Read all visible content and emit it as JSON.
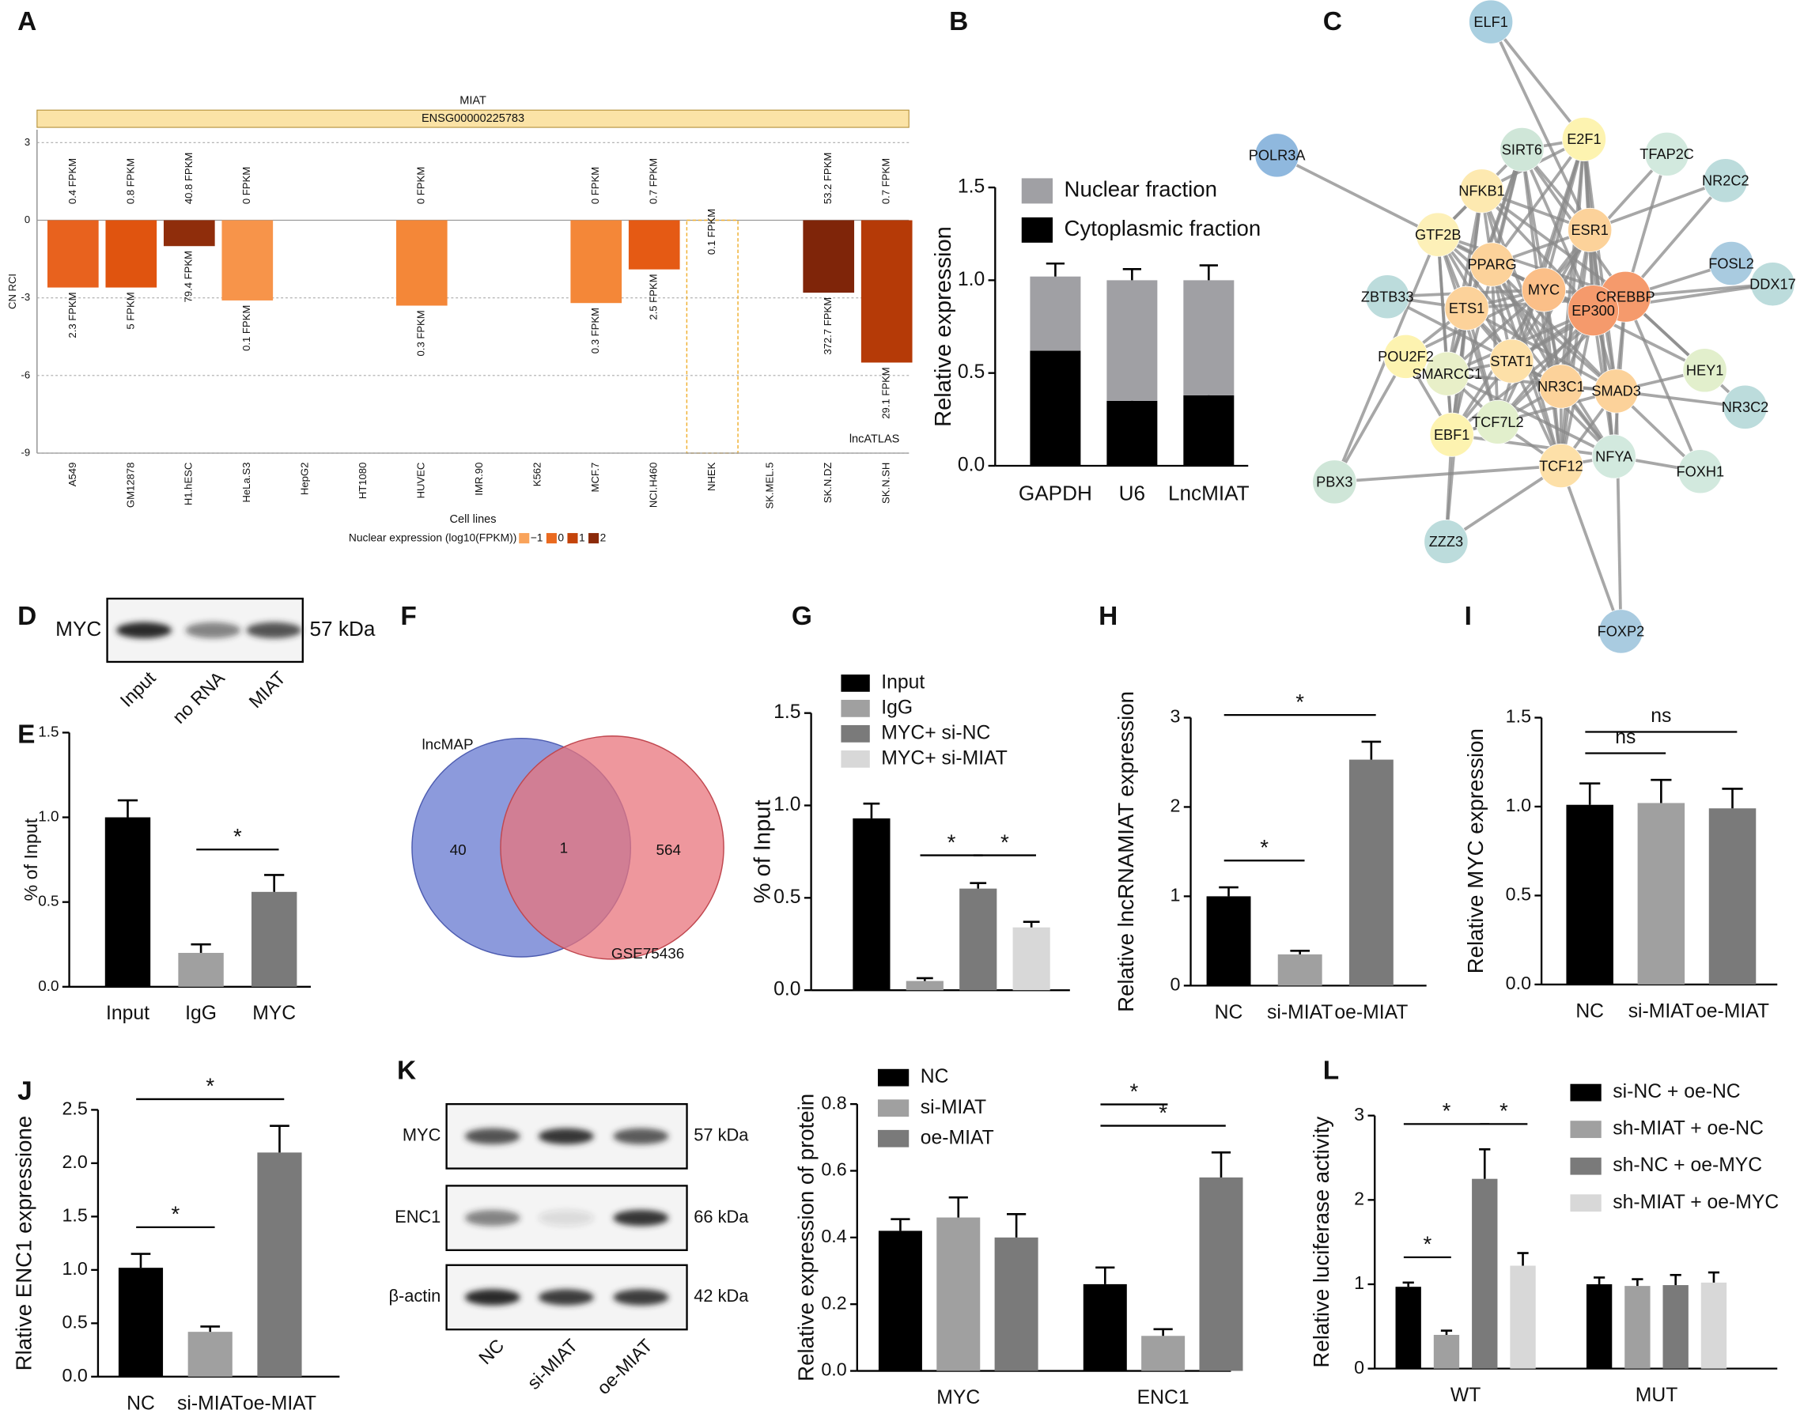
{
  "panels": [
    "A",
    "B",
    "C",
    "D",
    "E",
    "F",
    "G",
    "H",
    "I",
    "J",
    "K",
    "L"
  ],
  "chart_data": [
    {
      "type": "diverging_bar",
      "title": "MIAT",
      "gene": "ENSG00000225783",
      "ylabel": "CN RCI",
      "xlabel": "Cell lines",
      "source": "lncATLAS",
      "categories": [
        "A549",
        "GM12878",
        "H1.hESC",
        "HeLa.S3",
        "HepG2",
        "HT1080",
        "HUVEC",
        "IMR.90",
        "K562",
        "MCF.7",
        "NCI.H460",
        "NHEK",
        "SK.MEL.5",
        "SK.N.DZ",
        "SK.N.SH"
      ],
      "values": [
        -2.6,
        -2.6,
        -1.0,
        -3.1,
        null,
        null,
        -3.3,
        null,
        null,
        -3.2,
        -1.9,
        null,
        null,
        -2.8,
        -5.5
      ],
      "colors": [
        "#e8621e",
        "#e0540f",
        "#8f2d0b",
        "#f7944a",
        null,
        null,
        "#f48738",
        null,
        null,
        "#f48738",
        "#e55a14",
        null,
        null,
        "#7f2509",
        "#b53a07"
      ],
      "nuclear_labels": [
        "0.4 FPKM",
        "0.8 FPKM",
        "40.8 FPKM",
        "0 FPKM",
        null,
        null,
        "0 FPKM",
        null,
        null,
        "0 FPKM",
        "0.7 FPKM",
        "0.1 FPKM",
        null,
        "53.2 FPKM",
        "0.7 FPKM"
      ],
      "cytoplasmic_labels": [
        "2.3 FPKM",
        "5 FPKM",
        "79.4 FPKM",
        "0.1 FPKM",
        null,
        null,
        "0.3 FPKM",
        null,
        null,
        "0.3 FPKM",
        "2.5 FPKM",
        null,
        null,
        "372.7 FPKM",
        "29.1 FPKM"
      ],
      "highlight": "NHEK",
      "highlight_color": "#f0b030",
      "legend_title": "Nuclear expression (log10(FPKM))",
      "legend": [
        {
          "label": "−1",
          "color": "#f9a35a"
        },
        {
          "label": "0",
          "color": "#ea6a1f"
        },
        {
          "label": "1",
          "color": "#c4440b"
        },
        {
          "label": "2",
          "color": "#8b2a0a"
        }
      ],
      "ylim": [
        -9,
        3.5
      ],
      "yticks": [
        -9,
        -6,
        -3,
        0,
        3
      ],
      "grid": true
    },
    {
      "type": "stacked_bar",
      "ylabel": "Relative expression",
      "categories": [
        "GAPDH",
        "U6",
        "LncMIAT"
      ],
      "series": [
        {
          "name": "Nuclear fraction",
          "color": "#a0a0a4",
          "values": [
            0.4,
            0.65,
            0.62
          ],
          "errors": [
            0.07,
            0.06,
            0.08
          ]
        },
        {
          "name": "Cytoplasmic fraction",
          "color": "#000000",
          "values": [
            0.62,
            0.35,
            0.38
          ],
          "errors": [
            0.05,
            0.03,
            0.04
          ]
        }
      ],
      "ylim": [
        0,
        1.5
      ],
      "yticks": [
        {
          "value": 0,
          "label": "0.0"
        },
        {
          "value": 0.5,
          "label": "0.5"
        },
        {
          "value": 1,
          "label": "1.0"
        },
        {
          "value": 1.5,
          "label": "1.5"
        }
      ]
    },
    {
      "type": "bar",
      "ylabel": "% of Input",
      "categories": [
        "Input",
        "IgG",
        "MYC"
      ],
      "values": [
        1.0,
        0.2,
        0.56
      ],
      "errors": [
        0.1,
        0.05,
        0.1
      ],
      "colors": [
        "#000000",
        "#a0a0a0",
        "#7a7a7a"
      ],
      "annotations": [
        {
          "text": "*",
          "between": [
            1,
            2
          ]
        }
      ],
      "ylim": [
        0,
        1.5
      ],
      "yticks": [
        {
          "value": 0,
          "label": "0.0"
        },
        {
          "value": 0.5,
          "label": "0.5"
        },
        {
          "value": 1,
          "label": "1.0"
        },
        {
          "value": 1.5,
          "label": "1.5"
        }
      ]
    },
    {
      "type": "bar",
      "ylabel": "% of Input",
      "series": [
        {
          "name": "Input",
          "color": "#000000",
          "values": [
            0.93
          ],
          "errors": [
            0.08
          ]
        },
        {
          "name": "IgG",
          "color": "#a0a0a0",
          "values": [
            0.05
          ],
          "errors": [
            0.015
          ]
        },
        {
          "name": "MYC+ si-NC",
          "color": "#7a7a7a",
          "values": [
            0.55
          ],
          "errors": [
            0.03
          ]
        },
        {
          "name": "MYC+ si-MIAT",
          "color": "#d8d8d8",
          "values": [
            0.34
          ],
          "errors": [
            0.03
          ]
        }
      ],
      "annotations": [
        {
          "text": "*",
          "between": [
            1,
            2
          ]
        },
        {
          "text": "*",
          "between": [
            2,
            3
          ]
        }
      ],
      "ylim": [
        0,
        1.5
      ],
      "yticks": [
        {
          "value": 0,
          "label": "0.0"
        },
        {
          "value": 0.5,
          "label": "0.5"
        },
        {
          "value": 1,
          "label": "1.0"
        },
        {
          "value": 1.5,
          "label": "1.5"
        }
      ]
    },
    {
      "type": "bar",
      "ylabel": "Relative lncRNAMIAT expression",
      "categories": [
        "NC",
        "si-MIAT",
        "oe-MIAT"
      ],
      "values": [
        1.0,
        0.35,
        2.53
      ],
      "errors": [
        0.1,
        0.04,
        0.2
      ],
      "colors": [
        "#000000",
        "#a0a0a0",
        "#7a7a7a"
      ],
      "annotations": [
        {
          "text": "*",
          "between": [
            0,
            1
          ]
        },
        {
          "text": "*",
          "between": [
            0,
            2
          ]
        }
      ],
      "ylim": [
        0,
        3
      ],
      "yticks": [
        0,
        1,
        2,
        3
      ]
    },
    {
      "type": "bar",
      "ylabel": "Relative MYC expression",
      "categories": [
        "NC",
        "si-MIAT",
        "oe-MIAT"
      ],
      "values": [
        1.01,
        1.02,
        0.99
      ],
      "errors": [
        0.12,
        0.13,
        0.11
      ],
      "colors": [
        "#000000",
        "#a0a0a0",
        "#7a7a7a"
      ],
      "annotations": [
        {
          "text": "ns",
          "between": [
            0,
            1
          ]
        },
        {
          "text": "ns",
          "between": [
            0,
            2
          ]
        }
      ],
      "ylim": [
        0,
        1.5
      ],
      "yticks": [
        {
          "value": 0,
          "label": "0.0"
        },
        {
          "value": 0.5,
          "label": "0.5"
        },
        {
          "value": 1,
          "label": "1.0"
        },
        {
          "value": 1.5,
          "label": "1.5"
        }
      ]
    },
    {
      "type": "bar",
      "ylabel": "Rlative ENC1 expressione",
      "categories": [
        "NC",
        "si-MIAT",
        "oe-MIAT"
      ],
      "values": [
        1.02,
        0.42,
        2.1
      ],
      "errors": [
        0.13,
        0.05,
        0.25
      ],
      "colors": [
        "#000000",
        "#a0a0a0",
        "#7a7a7a"
      ],
      "annotations": [
        {
          "text": "*",
          "between": [
            0,
            1
          ]
        },
        {
          "text": "*",
          "between": [
            0,
            2
          ]
        }
      ],
      "ylim": [
        0,
        2.5
      ],
      "yticks": [
        {
          "value": 0,
          "label": "0.0"
        },
        {
          "value": 0.5,
          "label": "0.5"
        },
        {
          "value": 1,
          "label": "1.0"
        },
        {
          "value": 1.5,
          "label": "1.5"
        },
        {
          "value": 2,
          "label": "2.0"
        },
        {
          "value": 2.5,
          "label": "2.5"
        }
      ]
    },
    {
      "type": "bar",
      "ylabel": "Relative expression of protein",
      "categories": [
        "MYC",
        "ENC1"
      ],
      "series": [
        {
          "name": "NC",
          "color": "#000000",
          "values": [
            0.42,
            0.26
          ],
          "errors": [
            0.035,
            0.05
          ]
        },
        {
          "name": "si-MIAT",
          "color": "#a0a0a0",
          "values": [
            0.46,
            0.105
          ],
          "errors": [
            0.06,
            0.02
          ]
        },
        {
          "name": "oe-MIAT",
          "color": "#7a7a7a",
          "values": [
            0.4,
            0.58
          ],
          "errors": [
            0.07,
            0.075
          ]
        }
      ],
      "annotations": [
        {
          "text": "*",
          "between": [
            3,
            5
          ]
        },
        {
          "text": "*",
          "between": [
            3,
            4
          ]
        }
      ],
      "ylim": [
        0,
        0.8
      ],
      "yticks": [
        {
          "value": 0,
          "label": "0.0"
        },
        0.2,
        0.4,
        0.6,
        0.8
      ]
    },
    {
      "type": "bar",
      "ylabel": "Relative luciferase activity",
      "categories": [
        "WT",
        "MUT"
      ],
      "series": [
        {
          "name": "si-NC + oe-NC",
          "color": "#000000",
          "values": [
            0.97,
            1.0
          ],
          "errors": [
            0.05,
            0.08
          ]
        },
        {
          "name": "sh-MIAT + oe-NC",
          "color": "#a0a0a0",
          "values": [
            0.4,
            0.98
          ],
          "errors": [
            0.05,
            0.08
          ]
        },
        {
          "name": "sh-NC + oe-MYC",
          "color": "#7a7a7a",
          "values": [
            2.25,
            0.99
          ],
          "errors": [
            0.35,
            0.12
          ]
        },
        {
          "name": "sh-MIAT + oe-MYC",
          "color": "#d8d8d8",
          "values": [
            1.22,
            1.02
          ],
          "errors": [
            0.15,
            0.12
          ]
        }
      ],
      "annotations": [
        {
          "text": "*",
          "between": [
            0,
            1
          ]
        },
        {
          "text": "*",
          "between": [
            0,
            2
          ]
        },
        {
          "text": "*",
          "between": [
            2,
            3
          ]
        }
      ],
      "ylim": [
        0,
        3
      ],
      "yticks": [
        0,
        1,
        2,
        3
      ]
    }
  ],
  "network": {
    "nodes": [
      "ELF1",
      "POLR3A",
      "E2F1",
      "SIRT6",
      "TFAP2C",
      "NR2C2",
      "NFKB1",
      "GTF2B",
      "ESR1",
      "FOSL2",
      "DDX17",
      "PPARG",
      "MYC",
      "CREBBP",
      "EP300",
      "ZBTB33",
      "ETS1",
      "POU2F2",
      "STAT1",
      "SMARCC1",
      "NR3C1",
      "SMAD3",
      "HEY1",
      "NR3C2",
      "TCF7L2",
      "EBF1",
      "TCF12",
      "NFYA",
      "FOXH1",
      "PBX3",
      "ZZZ3",
      "FOXP2"
    ]
  },
  "blot_d": {
    "rows": [
      {
        "label": "MYC",
        "size": "57 kDa"
      }
    ],
    "lanes": [
      "Input",
      "no RNA",
      "MIAT"
    ]
  },
  "venn": {
    "sets": [
      "lncMAP",
      "GSE75436"
    ],
    "counts": [
      40,
      1,
      564
    ]
  },
  "blot_k": {
    "rows": [
      {
        "label": "MYC",
        "size": "57 kDa"
      },
      {
        "label": "ENC1",
        "size": "66 kDa"
      },
      {
        "label": "β-actin",
        "size": "42 kDa"
      }
    ],
    "lanes": [
      "NC",
      "si-MIAT",
      "oe-MIAT"
    ]
  }
}
